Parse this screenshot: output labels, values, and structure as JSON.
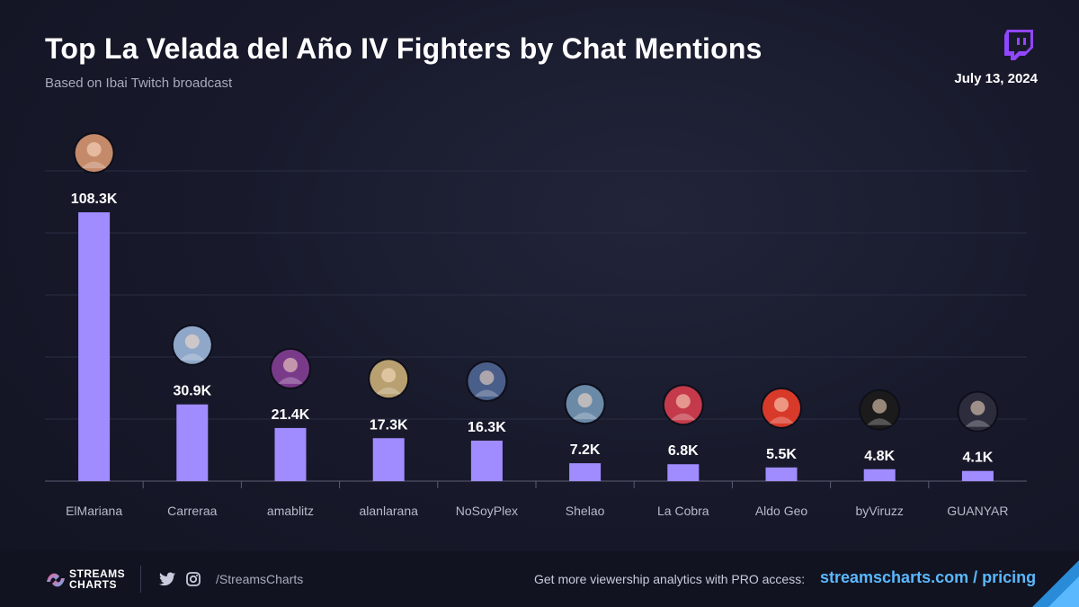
{
  "header": {
    "title": "Top La Velada del Año IV Fighters by Chat Mentions",
    "subtitle": "Based on Ibai Twitch broadcast",
    "date": "July 13, 2024"
  },
  "colors": {
    "bar": "#a18cff",
    "background": "#181a2c",
    "link": "#5ab8ff",
    "twitch": "#9146ff"
  },
  "chart_data": {
    "type": "bar",
    "title": "Top La Velada del Año IV Fighters by Chat Mentions",
    "subtitle": "Based on Ibai Twitch broadcast",
    "xlabel": "",
    "ylabel": "",
    "categories": [
      "ElMariana",
      "Carreraa",
      "amablitz",
      "alanlarana",
      "NoSoyPlex",
      "Shelao",
      "La Cobra",
      "Aldo Geo",
      "byViruzz",
      "GUANYAR"
    ],
    "values": [
      108300,
      30900,
      21400,
      17300,
      16300,
      7200,
      6800,
      5500,
      4800,
      4100
    ],
    "value_labels": [
      "108.3K",
      "30.9K",
      "21.4K",
      "17.3K",
      "16.3K",
      "7.2K",
      "6.8K",
      "5.5K",
      "4.8K",
      "4.1K"
    ],
    "ylim": [
      0,
      125000
    ],
    "grid": true,
    "legend": "none",
    "avatars": [
      "avatar-elmariana",
      "avatar-carreraa",
      "avatar-amablitz",
      "avatar-alanlarana",
      "avatar-nosoyplex",
      "avatar-shelao",
      "avatar-la-cobra",
      "avatar-aldo-geo",
      "avatar-byviruzz",
      "avatar-guanyar"
    ]
  },
  "footer": {
    "brand_line1": "STREAMS",
    "brand_line2": "CHARTS",
    "twitter_icon": "twitter-icon",
    "instagram_icon": "instagram-icon",
    "handle": "/StreamsCharts",
    "cta": "Get more viewership analytics with PRO access:",
    "link": "streamscharts.com / pricing"
  }
}
